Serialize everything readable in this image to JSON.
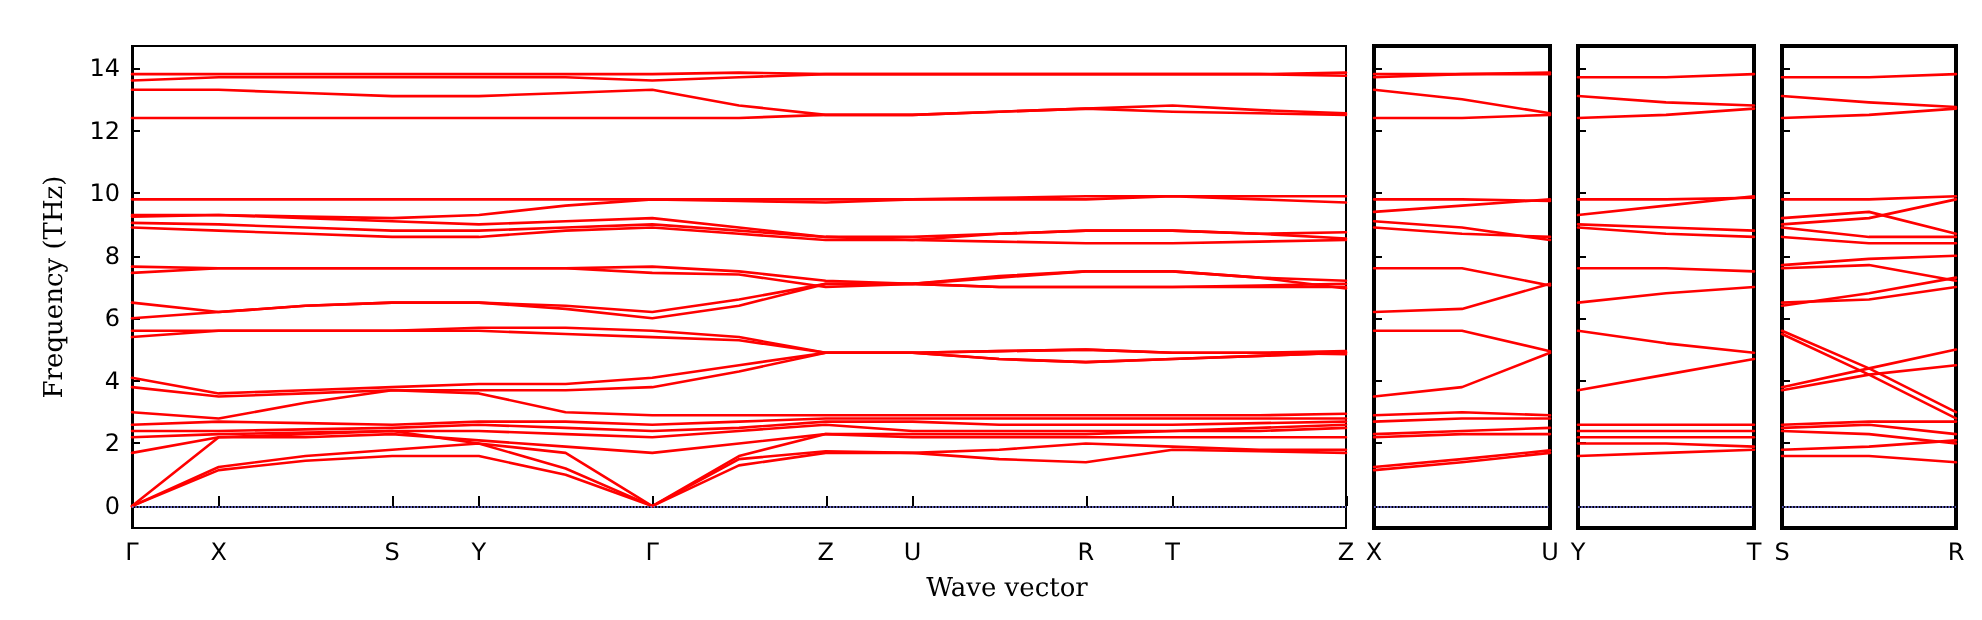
{
  "chart_data": [
    {
      "type": "line",
      "xlabel": "Wave vector",
      "ylabel": "Frequency (THz)",
      "color": "#ff0000",
      "marker": "none",
      "line_style": "solid",
      "categories": [
        "Γ",
        "X",
        null,
        "S",
        "Y",
        null,
        "Γ",
        null,
        "Z",
        "U",
        null,
        "R",
        "T",
        null,
        "Z"
      ],
      "ylim": [
        -0.7,
        14.7
      ],
      "yticks": [
        0,
        2,
        4,
        6,
        8,
        10,
        12,
        14
      ],
      "ref_lines": [
        {
          "axis": "y",
          "value": 0,
          "color": "#8080ff",
          "line_style": "dotted"
        }
      ],
      "series": [
        {
          "values": [
            0,
            1.15,
            1.45,
            1.6,
            1.6,
            1.0,
            0,
            1.3,
            1.7,
            1.7,
            1.5,
            1.4,
            1.8,
            1.75,
            1.7
          ]
        },
        {
          "values": [
            0,
            1.25,
            1.6,
            1.8,
            2.0,
            1.2,
            0,
            1.5,
            1.75,
            1.7,
            1.8,
            2.0,
            1.9,
            1.8,
            1.8
          ]
        },
        {
          "values": [
            0,
            2.2,
            2.3,
            2.4,
            2.0,
            1.7,
            0,
            1.6,
            2.3,
            2.2,
            2.2,
            2.2,
            2.2,
            2.2,
            2.2
          ]
        },
        {
          "values": [
            1.7,
            2.2,
            2.2,
            2.3,
            2.1,
            1.9,
            1.7,
            2.0,
            2.3,
            2.3,
            2.3,
            2.3,
            2.4,
            2.4,
            2.5
          ]
        },
        {
          "values": [
            2.2,
            2.3,
            2.35,
            2.4,
            2.4,
            2.3,
            2.2,
            2.4,
            2.6,
            2.4,
            2.4,
            2.4,
            2.4,
            2.5,
            2.6
          ]
        },
        {
          "values": [
            2.4,
            2.4,
            2.45,
            2.5,
            2.6,
            2.5,
            2.4,
            2.5,
            2.7,
            2.7,
            2.6,
            2.6,
            2.6,
            2.65,
            2.7
          ]
        },
        {
          "values": [
            2.6,
            2.7,
            2.65,
            2.6,
            2.7,
            2.7,
            2.6,
            2.7,
            2.8,
            2.8,
            2.8,
            2.8,
            2.8,
            2.8,
            2.8
          ]
        },
        {
          "values": [
            3.0,
            2.8,
            3.3,
            3.7,
            3.6,
            3.0,
            2.9,
            2.9,
            2.9,
            2.9,
            2.9,
            2.9,
            2.9,
            2.9,
            2.95
          ]
        },
        {
          "values": [
            3.8,
            3.5,
            3.6,
            3.7,
            3.7,
            3.7,
            3.8,
            4.3,
            4.9,
            4.9,
            4.7,
            4.6,
            4.7,
            4.8,
            4.9
          ]
        },
        {
          "values": [
            4.1,
            3.6,
            3.7,
            3.8,
            3.9,
            3.9,
            4.1,
            4.5,
            4.9,
            4.9,
            4.95,
            5.0,
            4.9,
            4.9,
            4.95
          ]
        },
        {
          "values": [
            5.4,
            5.6,
            5.6,
            5.6,
            5.6,
            5.5,
            5.4,
            5.3,
            4.9,
            4.9,
            4.7,
            4.6,
            4.7,
            4.8,
            4.9
          ]
        },
        {
          "values": [
            5.6,
            5.6,
            5.6,
            5.6,
            5.7,
            5.7,
            5.6,
            5.4,
            4.9,
            4.9,
            4.95,
            5.0,
            4.9,
            4.9,
            4.85
          ]
        },
        {
          "values": [
            6.0,
            6.2,
            6.4,
            6.5,
            6.5,
            6.3,
            6.0,
            6.4,
            7.1,
            7.1,
            7.0,
            7.0,
            7.0,
            7.0,
            7.0
          ]
        },
        {
          "values": [
            6.5,
            6.2,
            6.4,
            6.5,
            6.5,
            6.4,
            6.2,
            6.6,
            7.1,
            7.1,
            7.0,
            7.0,
            7.0,
            7.05,
            7.1
          ]
        },
        {
          "values": [
            7.45,
            7.6,
            7.6,
            7.6,
            7.6,
            7.6,
            7.45,
            7.4,
            7.0,
            7.1,
            7.3,
            7.5,
            7.5,
            7.3,
            6.95
          ]
        },
        {
          "values": [
            7.65,
            7.6,
            7.6,
            7.6,
            7.6,
            7.6,
            7.65,
            7.5,
            7.2,
            7.1,
            7.35,
            7.5,
            7.5,
            7.3,
            7.2
          ]
        },
        {
          "values": [
            8.9,
            8.8,
            8.7,
            8.6,
            8.6,
            8.8,
            8.9,
            8.7,
            8.5,
            8.5,
            8.45,
            8.4,
            8.4,
            8.45,
            8.5
          ]
        },
        {
          "values": [
            9.05,
            9.0,
            8.9,
            8.8,
            8.8,
            8.9,
            9.0,
            8.8,
            8.6,
            8.6,
            8.7,
            8.8,
            8.8,
            8.7,
            8.55
          ]
        },
        {
          "values": [
            9.25,
            9.3,
            9.2,
            9.1,
            9.0,
            9.1,
            9.2,
            8.9,
            8.6,
            8.5,
            8.7,
            8.8,
            8.8,
            8.7,
            8.75
          ]
        },
        {
          "values": [
            9.3,
            9.3,
            9.25,
            9.2,
            9.3,
            9.6,
            9.8,
            9.75,
            9.7,
            9.8,
            9.8,
            9.8,
            9.9,
            9.8,
            9.7
          ]
        },
        {
          "values": [
            9.8,
            9.8,
            9.8,
            9.8,
            9.8,
            9.8,
            9.8,
            9.8,
            9.8,
            9.8,
            9.85,
            9.9,
            9.9,
            9.9,
            9.9
          ]
        },
        {
          "values": [
            12.4,
            12.4,
            12.4,
            12.4,
            12.4,
            12.4,
            12.4,
            12.4,
            12.5,
            12.5,
            12.6,
            12.7,
            12.6,
            12.55,
            12.5
          ]
        },
        {
          "values": [
            13.3,
            13.3,
            13.2,
            13.1,
            13.1,
            13.2,
            13.3,
            12.8,
            12.5,
            12.5,
            12.6,
            12.7,
            12.8,
            12.65,
            12.55
          ]
        },
        {
          "values": [
            13.6,
            13.7,
            13.7,
            13.7,
            13.7,
            13.7,
            13.6,
            13.7,
            13.8,
            13.8,
            13.8,
            13.8,
            13.8,
            13.8,
            13.75
          ]
        },
        {
          "values": [
            13.8,
            13.8,
            13.8,
            13.8,
            13.8,
            13.8,
            13.8,
            13.85,
            13.8,
            13.8,
            13.8,
            13.8,
            13.8,
            13.8,
            13.85
          ]
        }
      ]
    },
    {
      "type": "line",
      "color": "#ff0000",
      "marker": "none",
      "line_style": "solid",
      "tick_labels": "x",
      "categories": [
        "X",
        null,
        "U"
      ],
      "ylim": [
        -0.7,
        14.7
      ],
      "yticks": [
        0,
        2,
        4,
        6,
        8,
        10,
        12,
        14
      ],
      "ref_lines": [
        {
          "axis": "y",
          "value": 0,
          "color": "#8080ff",
          "line_style": "dotted"
        }
      ],
      "series": [
        {
          "values": [
            1.15,
            1.4,
            1.7
          ]
        },
        {
          "values": [
            1.25,
            1.5,
            1.78
          ]
        },
        {
          "values": [
            2.2,
            2.3,
            2.3
          ]
        },
        {
          "values": [
            2.3,
            2.4,
            2.5
          ]
        },
        {
          "values": [
            2.7,
            2.8,
            2.8
          ]
        },
        {
          "values": [
            2.9,
            3.0,
            2.9
          ]
        },
        {
          "values": [
            3.5,
            3.8,
            4.9
          ]
        },
        {
          "values": [
            5.6,
            5.6,
            4.95
          ]
        },
        {
          "values": [
            6.2,
            6.3,
            7.1
          ]
        },
        {
          "values": [
            7.6,
            7.6,
            7.05
          ]
        },
        {
          "values": [
            8.9,
            8.7,
            8.6
          ]
        },
        {
          "values": [
            9.1,
            8.9,
            8.5
          ]
        },
        {
          "values": [
            9.4,
            9.6,
            9.8
          ]
        },
        {
          "values": [
            9.8,
            9.8,
            9.75
          ]
        },
        {
          "values": [
            12.4,
            12.4,
            12.5
          ]
        },
        {
          "values": [
            13.3,
            13.0,
            12.55
          ]
        },
        {
          "values": [
            13.7,
            13.8,
            13.8
          ]
        },
        {
          "values": [
            13.8,
            13.8,
            13.85
          ]
        }
      ]
    },
    {
      "type": "line",
      "color": "#ff0000",
      "marker": "none",
      "line_style": "solid",
      "tick_labels": "x",
      "categories": [
        "Y",
        null,
        "T"
      ],
      "ylim": [
        -0.7,
        14.7
      ],
      "yticks": [
        0,
        2,
        4,
        6,
        8,
        10,
        12,
        14
      ],
      "ref_lines": [
        {
          "axis": "y",
          "value": 0,
          "color": "#8080ff",
          "line_style": "dotted"
        }
      ],
      "series": [
        {
          "values": [
            1.6,
            1.7,
            1.8
          ]
        },
        {
          "values": [
            2.0,
            2.0,
            1.9
          ]
        },
        {
          "values": [
            2.2,
            2.2,
            2.2
          ]
        },
        {
          "values": [
            2.4,
            2.4,
            2.4
          ]
        },
        {
          "values": [
            2.6,
            2.6,
            2.6
          ]
        },
        {
          "values": [
            3.7,
            4.2,
            4.7
          ]
        },
        {
          "values": [
            5.6,
            5.2,
            4.9
          ]
        },
        {
          "values": [
            6.5,
            6.8,
            7.0
          ]
        },
        {
          "values": [
            7.6,
            7.6,
            7.5
          ]
        },
        {
          "values": [
            8.9,
            8.7,
            8.6
          ]
        },
        {
          "values": [
            9.0,
            8.9,
            8.8
          ]
        },
        {
          "values": [
            9.3,
            9.6,
            9.9
          ]
        },
        {
          "values": [
            9.8,
            9.8,
            9.85
          ]
        },
        {
          "values": [
            12.4,
            12.5,
            12.7
          ]
        },
        {
          "values": [
            13.1,
            12.9,
            12.8
          ]
        },
        {
          "values": [
            13.7,
            13.7,
            13.8
          ]
        }
      ]
    },
    {
      "type": "line",
      "color": "#ff0000",
      "marker": "none",
      "line_style": "solid",
      "tick_labels": "x",
      "categories": [
        "S",
        null,
        "R"
      ],
      "ylim": [
        -0.7,
        14.7
      ],
      "yticks": [
        0,
        2,
        4,
        6,
        8,
        10,
        12,
        14
      ],
      "ref_lines": [
        {
          "axis": "y",
          "value": 0,
          "color": "#8080ff",
          "line_style": "dotted"
        }
      ],
      "series": [
        {
          "values": [
            1.6,
            1.6,
            1.4
          ]
        },
        {
          "values": [
            1.8,
            1.9,
            2.1
          ]
        },
        {
          "values": [
            2.4,
            2.3,
            2.0
          ]
        },
        {
          "values": [
            2.5,
            2.6,
            2.3
          ]
        },
        {
          "values": [
            2.6,
            2.7,
            2.7
          ]
        },
        {
          "values": [
            3.7,
            4.2,
            4.5
          ]
        },
        {
          "values": [
            3.8,
            4.4,
            5.0
          ]
        },
        {
          "values": [
            5.5,
            4.2,
            2.8
          ]
        },
        {
          "values": [
            5.6,
            4.4,
            3.0
          ]
        },
        {
          "values": [
            6.5,
            6.6,
            7.0
          ]
        },
        {
          "values": [
            6.4,
            6.8,
            7.3
          ]
        },
        {
          "values": [
            7.6,
            7.7,
            7.2
          ]
        },
        {
          "values": [
            7.7,
            7.9,
            8.0
          ]
        },
        {
          "values": [
            8.6,
            8.4,
            8.4
          ]
        },
        {
          "values": [
            8.9,
            8.6,
            8.6
          ]
        },
        {
          "values": [
            9.0,
            9.2,
            9.8
          ]
        },
        {
          "values": [
            9.2,
            9.4,
            8.7
          ]
        },
        {
          "values": [
            9.8,
            9.8,
            9.9
          ]
        },
        {
          "values": [
            12.4,
            12.5,
            12.7
          ]
        },
        {
          "values": [
            13.1,
            12.9,
            12.75
          ]
        },
        {
          "values": [
            13.7,
            13.7,
            13.8
          ]
        }
      ]
    }
  ]
}
